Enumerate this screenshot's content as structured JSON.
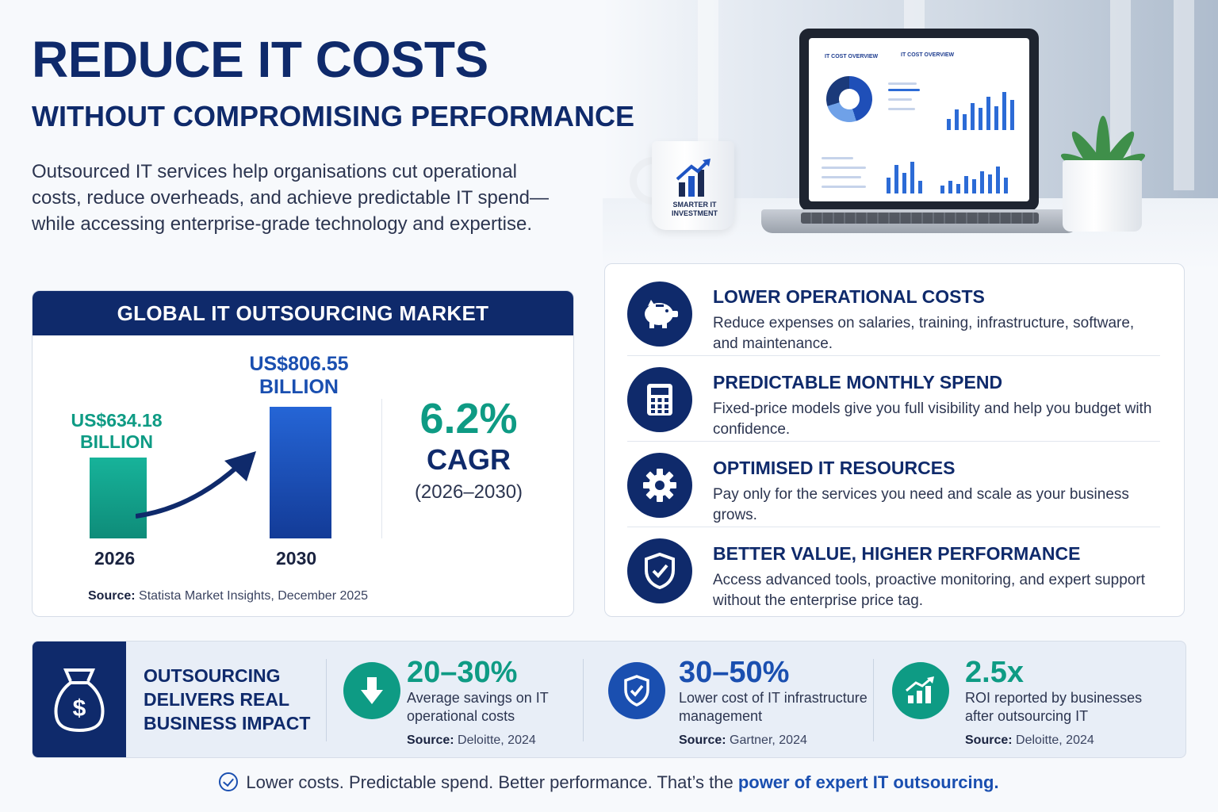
{
  "header": {
    "title": "REDUCE IT COSTS",
    "subtitle": "WITHOUT COMPROMISING PERFORMANCE",
    "intro": "Outsourced IT services help organisations cut operational costs, reduce overheads, and achieve predictable IT spend—while accessing enterprise-grade technology and expertise."
  },
  "hero": {
    "mug_text": "SMARTER IT INVESTMENT",
    "dashboard_title_1": "IT COST OVERVIEW",
    "dashboard_title_2": "IT COST OVERVIEW"
  },
  "market": {
    "heading": "GLOBAL IT OUTSOURCING MARKET",
    "cagr_value": "6.2%",
    "cagr_label": "CAGR",
    "cagr_period": "(2026–2030)",
    "source_label": "Source:",
    "source_text": "Statista Market Insights, December 2025"
  },
  "chart_data": {
    "type": "bar",
    "categories": [
      "2026",
      "2030"
    ],
    "values": [
      634.18,
      806.55
    ],
    "value_labels": [
      "US$634.18 BILLION",
      "US$806.55 BILLION"
    ],
    "value_label_lines": [
      [
        "US$634.18",
        "BILLION"
      ],
      [
        "US$806.55",
        "BILLION"
      ]
    ],
    "colors": [
      "#12a58d",
      "#1f55c4"
    ]
  },
  "benefits": [
    {
      "title": "LOWER OPERATIONAL COSTS",
      "desc": "Reduce expenses on salaries, training, infrastructure, software, and maintenance.",
      "icon": "piggy-bank-icon"
    },
    {
      "title": "PREDICTABLE MONTHLY SPEND",
      "desc": "Fixed-price models give you full visibility and help you budget with confidence.",
      "icon": "calculator-icon"
    },
    {
      "title": "OPTIMISED IT RESOURCES",
      "desc": "Pay only for the services you need and scale as your business grows.",
      "icon": "gear-icon"
    },
    {
      "title": "BETTER VALUE, HIGHER PERFORMANCE",
      "desc": "Access advanced tools, proactive monitoring, and expert support without the enterprise price tag.",
      "icon": "shield-check-icon"
    }
  ],
  "impact": {
    "heading": "OUTSOURCING DELIVERS REAL BUSINESS IMPACT",
    "heading_lines": [
      "OUTSOURCING",
      "DELIVERS REAL",
      "BUSINESS IMPACT"
    ],
    "stats": [
      {
        "value": "20–30%",
        "desc": "Average savings on IT operational costs",
        "source_label": "Source:",
        "source": "Deloitte, 2024",
        "color": "#0e9b84",
        "icon": "arrow-down-icon"
      },
      {
        "value": "30–50%",
        "desc": "Lower cost of IT infrastructure management",
        "source_label": "Source:",
        "source": "Gartner, 2024",
        "color": "#1a4fb0",
        "icon": "shield-check-icon"
      },
      {
        "value": "2.5x",
        "desc": "ROI reported by businesses after outsourcing IT",
        "source_label": "Source:",
        "source": "Deloitte, 2024",
        "color": "#0e9b84",
        "icon": "growth-chart-icon"
      }
    ]
  },
  "footer": {
    "text": "Lower costs. Predictable spend. Better performance. That’s the",
    "emphasis": "power of expert IT outsourcing."
  }
}
